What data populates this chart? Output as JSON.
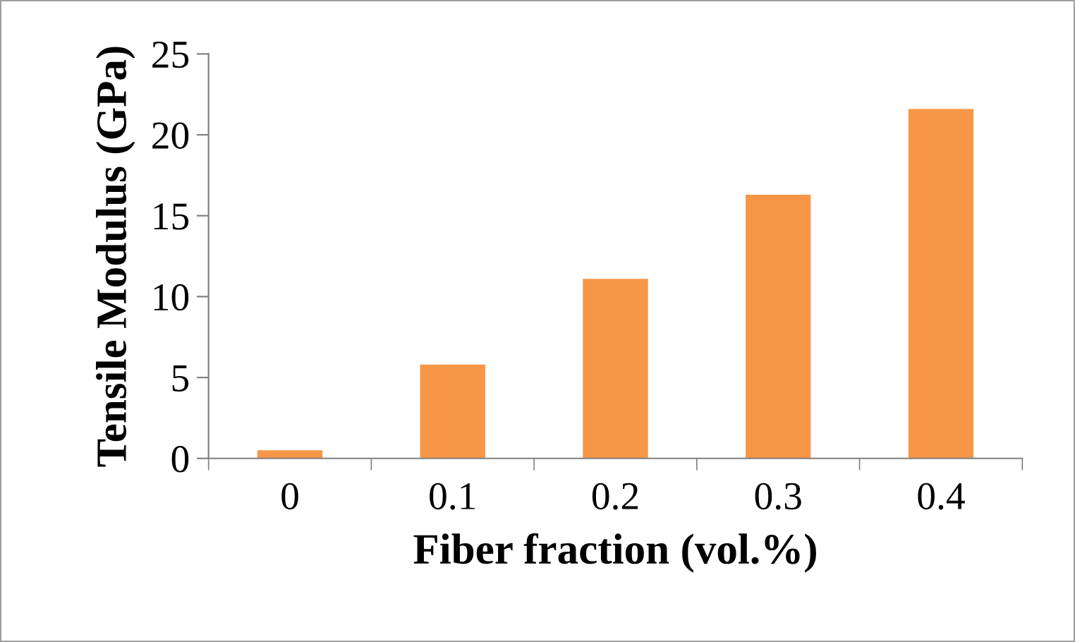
{
  "chart_data": {
    "type": "bar",
    "xlabel": "Fiber fraction (vol.%)",
    "ylabel": "Tensile Modulus (GPa)",
    "categories": [
      "0",
      "0.1",
      "0.2",
      "0.3",
      "0.4"
    ],
    "values": [
      0.5,
      5.8,
      11.1,
      16.3,
      21.6
    ],
    "color": "#f79646",
    "ylim": [
      0,
      25
    ],
    "yticks": [
      0,
      5,
      10,
      15,
      20,
      25
    ],
    "grid": false,
    "legend": false
  }
}
